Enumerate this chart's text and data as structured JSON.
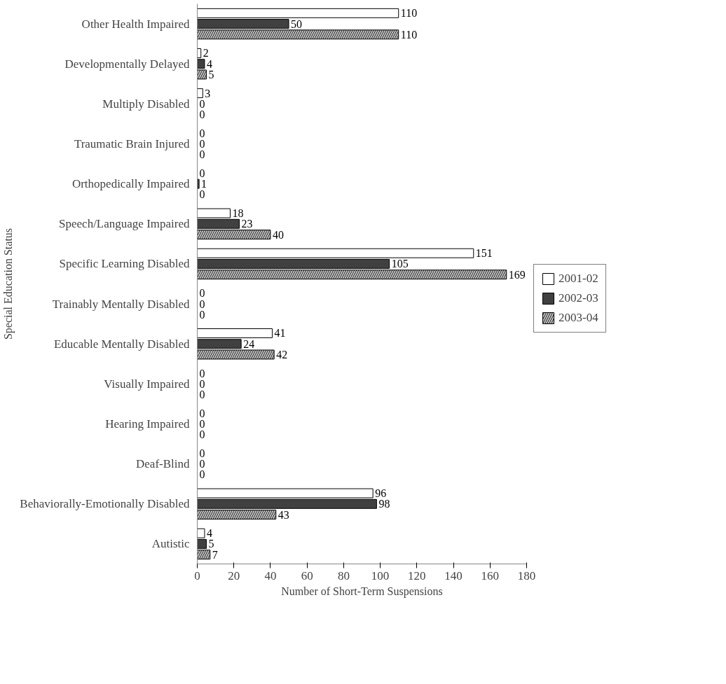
{
  "chart_data": {
    "type": "bar",
    "orientation": "horizontal",
    "xlabel": "Number of Short-Term Suspensions",
    "ylabel": "Special Education Status",
    "categories": [
      "Other Health Impaired",
      "Developmentally Delayed",
      "Multiply Disabled",
      "Traumatic Brain Injured",
      "Orthopedically Impaired",
      "Speech/Language Impaired",
      "Specific Learning Disabled",
      "Trainably Mentally Disabled",
      "Educable Mentally Disabled",
      "Visually Impaired",
      "Hearing Impaired",
      "Deaf-Blind",
      "Behaviorally-Emotionally Disabled",
      "Autistic"
    ],
    "series": [
      {
        "name": "2001-02",
        "color": "#ffffff",
        "values": [
          110,
          2,
          3,
          0,
          0,
          18,
          151,
          0,
          41,
          0,
          0,
          0,
          96,
          4
        ]
      },
      {
        "name": "2002-03",
        "color": "#404040",
        "values": [
          50,
          4,
          0,
          0,
          1,
          23,
          105,
          0,
          24,
          0,
          0,
          0,
          98,
          5
        ]
      },
      {
        "name": "2003-04",
        "color": "#c0c0c0",
        "values": [
          110,
          5,
          0,
          0,
          0,
          40,
          169,
          0,
          42,
          0,
          0,
          0,
          43,
          7
        ]
      }
    ],
    "xlim": [
      0,
      180
    ],
    "xticks": [
      0,
      20,
      40,
      60,
      80,
      100,
      120,
      140,
      160,
      180
    ],
    "grid": false,
    "legend": "right",
    "data_labels": true
  }
}
